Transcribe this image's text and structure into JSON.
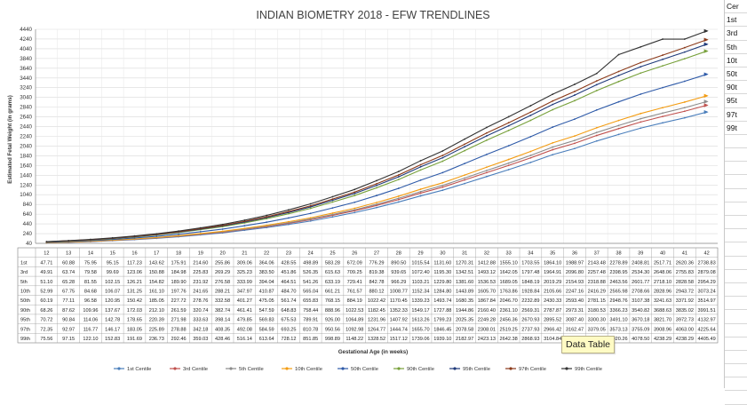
{
  "chart_data": {
    "type": "line",
    "title": "INDIAN BIOMETRY 2018 - EFW TRENDLINES",
    "xlabel": "Gestational Age (in weeks)",
    "ylabel": "Estimated Fetal Weight (in grams)",
    "ylim": [
      40,
      4440
    ],
    "yticks": [
      40,
      240,
      440,
      640,
      840,
      1040,
      1240,
      1440,
      1640,
      1840,
      2040,
      2240,
      2440,
      2640,
      2840,
      3040,
      3240,
      3440,
      3640,
      3840,
      4040,
      4240,
      4440
    ],
    "x": [
      12,
      13,
      14,
      15,
      16,
      17,
      18,
      19,
      20,
      21,
      22,
      23,
      24,
      25,
      26,
      27,
      28,
      29,
      30,
      31,
      32,
      33,
      34,
      35,
      36,
      37,
      38,
      39,
      40,
      41,
      42
    ],
    "grid": true,
    "legend_position": "bottom",
    "series": [
      {
        "name": "1st Centile",
        "color": "#4a7ebb",
        "values": [
          47.71,
          60.88,
          75.95,
          95.15,
          117.23,
          143.62,
          175.91,
          214.6,
          255.86,
          309.06,
          364.06,
          428.55,
          498.89,
          583.28,
          672.09,
          776.29,
          890.5,
          1015.54,
          1131.6,
          1270.31,
          1412.88,
          1555.1,
          1703.55,
          1864.1,
          1988.97,
          2143.48,
          2278.89,
          2408.81,
          2517.71,
          2620.36,
          2738.83
        ]
      },
      {
        "name": "3rd Centile",
        "color": "#c0504d",
        "values": [
          49.91,
          63.74,
          79.58,
          99.69,
          123.06,
          150.88,
          184.98,
          225.83,
          269.29,
          325.23,
          383.5,
          451.86,
          526.35,
          615.63,
          709.25,
          819.38,
          939.65,
          1072.4,
          1195.3,
          1342.51,
          1493.12,
          1642.05,
          1797.48,
          1964.91,
          2096.8,
          2257.48,
          2398.95,
          2534.3,
          2648.06,
          2755.83,
          2879.08
        ]
      },
      {
        "name": "5th Centile",
        "color": "#8c8c8c",
        "values": [
          51.1,
          65.28,
          81.55,
          102.15,
          126.21,
          154.82,
          189.9,
          231.92,
          276.58,
          333.99,
          394.04,
          464.51,
          541.26,
          633.19,
          729.41,
          842.78,
          966.29,
          1103.21,
          1229.8,
          1381.6,
          1536.53,
          1689.05,
          1848.19,
          2019.29,
          2154.93,
          2318.88,
          2463.56,
          2601.77,
          2718.1,
          2828.58,
          2954.29
        ]
      },
      {
        "name": "10th Centile",
        "color": "#f39c12",
        "values": [
          52.99,
          67.75,
          84.68,
          106.07,
          131.25,
          161.1,
          197.76,
          241.65,
          288.21,
          347.97,
          410.87,
          484.7,
          565.04,
          661.21,
          761.57,
          880.12,
          1008.77,
          1152.34,
          1284.8,
          1443.89,
          1605.7,
          1763.86,
          1928.84,
          2105.66,
          2247.16,
          2416.29,
          2565.98,
          2708.66,
          2828.96,
          2943.72,
          3073.24
        ]
      },
      {
        "name": "50th Centile",
        "color": "#2e5aa8",
        "values": [
          60.19,
          77.11,
          96.58,
          120.95,
          150.42,
          185.05,
          227.72,
          278.76,
          332.58,
          401.27,
          475.05,
          561.74,
          655.83,
          768.15,
          884.19,
          1022.42,
          1170.45,
          1339.23,
          1493.74,
          1680.35,
          1867.84,
          2046.7,
          2232.89,
          2430.33,
          2593.4,
          2781.15,
          2948.76,
          3107.38,
          3241.63,
          3371.92,
          3514.97
        ]
      },
      {
        "name": "90th Centile",
        "color": "#77a03a",
        "values": [
          68.26,
          87.62,
          109.96,
          137.67,
          172.03,
          212.1,
          261.59,
          320.74,
          382.74,
          461.41,
          547.59,
          648.83,
          758.44,
          888.96,
          1022.53,
          1182.45,
          1352.33,
          1549.17,
          1727.88,
          1944.86,
          2160.4,
          2361.1,
          2569.31,
          2787.87,
          2973.31,
          3180.53,
          3366.23,
          3540.82,
          3688.63,
          3835.02,
          3991.51
        ]
      },
      {
        "name": "95th Centile",
        "color": "#1f3a7a",
        "values": [
          70.72,
          90.84,
          114.06,
          142.78,
          178.65,
          220.39,
          271.98,
          333.63,
          398.14,
          479.85,
          569.83,
          675.53,
          789.91,
          926.0,
          1064.89,
          1231.96,
          1407.92,
          1613.26,
          1799.23,
          2025.35,
          2249.28,
          2456.36,
          2670.93,
          2895.52,
          3087.4,
          3300.3,
          3491.1,
          3670.18,
          3821.7,
          3972.73,
          4132.97
        ]
      },
      {
        "name": "97th Centile",
        "color": "#8b3a1a",
        "values": [
          72.35,
          92.97,
          116.77,
          146.17,
          183.05,
          225.89,
          278.88,
          342.18,
          408.35,
          492.08,
          584.59,
          693.25,
          810.78,
          950.56,
          1092.98,
          1264.77,
          1444.74,
          1655.7,
          1846.45,
          2078.58,
          2308.01,
          2519.25,
          2737.93,
          2966.42,
          3162.47,
          3379.05,
          3573.13,
          3755.09,
          3908.96,
          4063.0,
          4225.64
        ]
      },
      {
        "name": "99th Centile",
        "color": "#333333",
        "values": [
          75.56,
          97.15,
          122.1,
          152.83,
          191.69,
          236.73,
          292.46,
          359.03,
          428.46,
          516.14,
          613.64,
          728.12,
          851.85,
          998.89,
          1148.22,
          1328.52,
          1517.12,
          1739.06,
          1939.1,
          2182.97,
          2423.13,
          2642.38,
          2868.93,
          3104.84,
          3308.84,
          3531.82,
          3920.26,
          4078.5,
          4238.29,
          4238.29,
          4405.49
        ]
      }
    ]
  },
  "data_table_tooltip": "Data Table",
  "sheet_column": [
    "Cer",
    "1st",
    "3rd",
    "5th",
    "10t",
    "50t",
    "90t",
    "95t",
    "97t",
    "99t"
  ]
}
